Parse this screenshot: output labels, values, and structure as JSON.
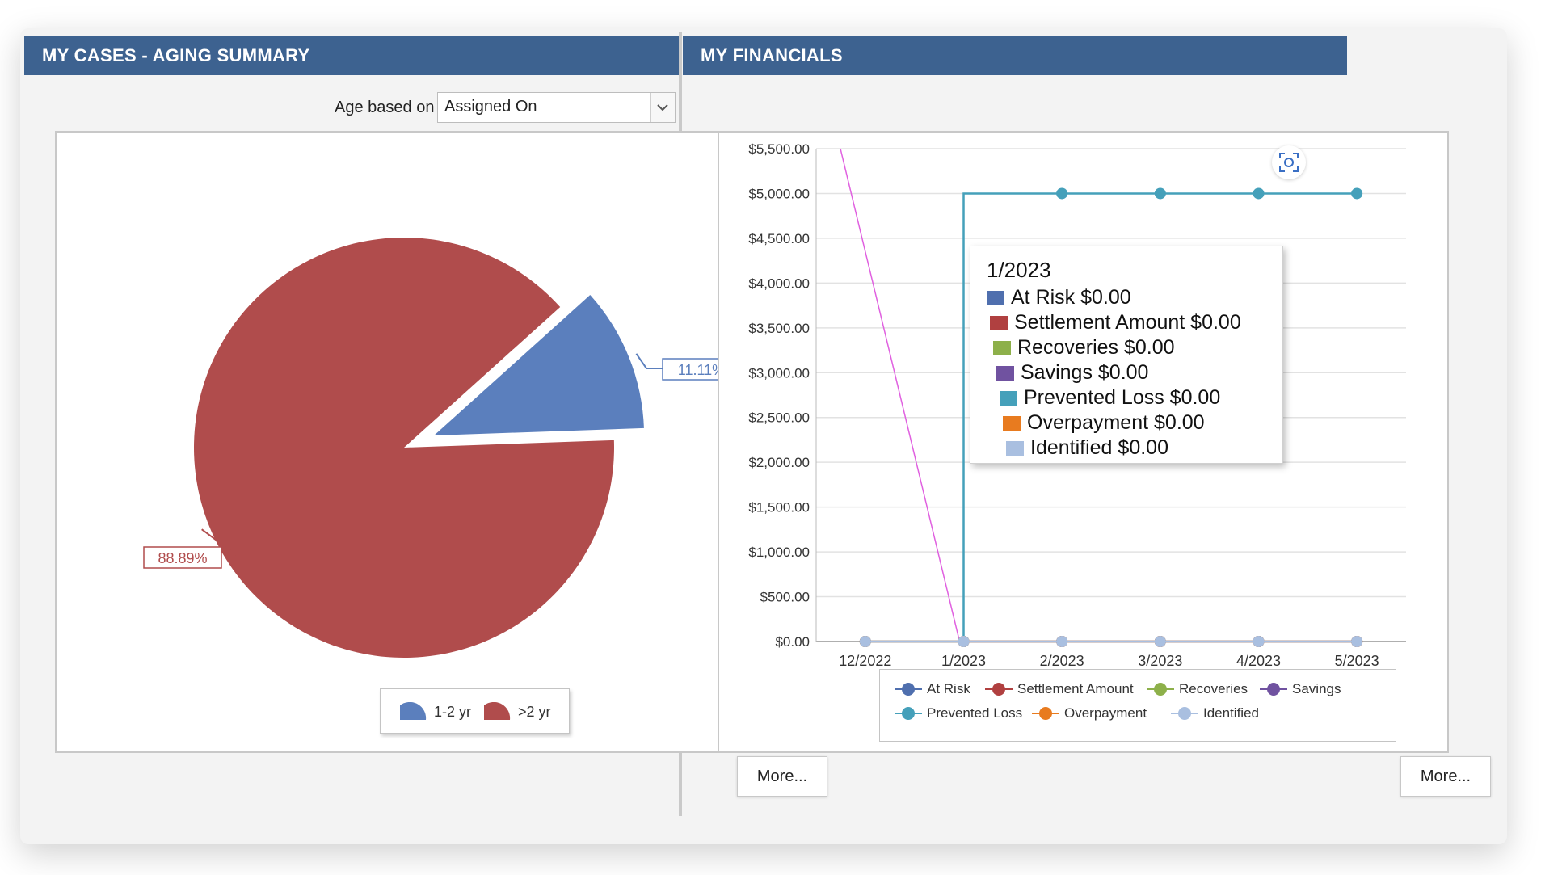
{
  "aging": {
    "title": "MY CASES - AGING SUMMARY",
    "age_label": "Age based on",
    "age_select_value": "Assigned On",
    "more_label": "More...",
    "chart_data": {
      "type": "pie",
      "slices": [
        {
          "label": "1-2 yr",
          "value": 11.11,
          "display": "11.11%",
          "color": "#5b7fbd"
        },
        {
          "label": ">2 yr",
          "value": 88.89,
          "display": "88.89%",
          "color": "#b04c4c"
        }
      ],
      "legend": [
        "1-2 yr",
        ">2 yr"
      ]
    }
  },
  "financials": {
    "title": "MY FINANCIALS",
    "more_label": "More...",
    "chart_data": {
      "type": "line",
      "categories": [
        "12/2022",
        "1/2023",
        "2/2023",
        "3/2023",
        "4/2023",
        "5/2023"
      ],
      "y_ticks": [
        "$0.00",
        "$500.00",
        "$1,000.00",
        "$1,500.00",
        "$2,000.00",
        "$2,500.00",
        "$3,000.00",
        "$3,500.00",
        "$4,000.00",
        "$4,500.00",
        "$5,000.00",
        "$5,500.00"
      ],
      "ylim": [
        0,
        5500
      ],
      "series": [
        {
          "name": "At Risk",
          "color": "#4f6fae",
          "values": [
            0,
            0,
            0,
            0,
            0,
            0
          ]
        },
        {
          "name": "Settlement Amount",
          "color": "#b04040",
          "values": [
            0,
            0,
            0,
            0,
            0,
            0
          ]
        },
        {
          "name": "Recoveries",
          "color": "#8db04a",
          "values": [
            0,
            0,
            0,
            0,
            0,
            0
          ]
        },
        {
          "name": "Savings",
          "color": "#7052a0",
          "values": [
            0,
            0,
            0,
            0,
            0,
            0
          ]
        },
        {
          "name": "Prevented Loss",
          "color": "#45a0ba",
          "values": [
            0,
            0,
            5000,
            5000,
            5000,
            5000
          ]
        },
        {
          "name": "Overpayment",
          "color": "#e87b1f",
          "values": [
            0,
            0,
            0,
            0,
            0,
            0
          ]
        },
        {
          "name": "Identified",
          "color": "#a9bfe0",
          "values": [
            0,
            0,
            0,
            0,
            0,
            0
          ]
        }
      ],
      "tooltip": {
        "title": "1/2023",
        "rows": [
          {
            "label": "At Risk $0.00",
            "color": "#4f6fae"
          },
          {
            "label": "Settlement Amount $0.00",
            "color": "#b04040"
          },
          {
            "label": "Recoveries $0.00",
            "color": "#8db04a"
          },
          {
            "label": "Savings $0.00",
            "color": "#7052a0"
          },
          {
            "label": "Prevented Loss $0.00",
            "color": "#45a0ba"
          },
          {
            "label": "Overpayment $0.00",
            "color": "#e87b1f"
          },
          {
            "label": "Identified $0.00",
            "color": "#a9bfe0"
          }
        ]
      }
    }
  }
}
